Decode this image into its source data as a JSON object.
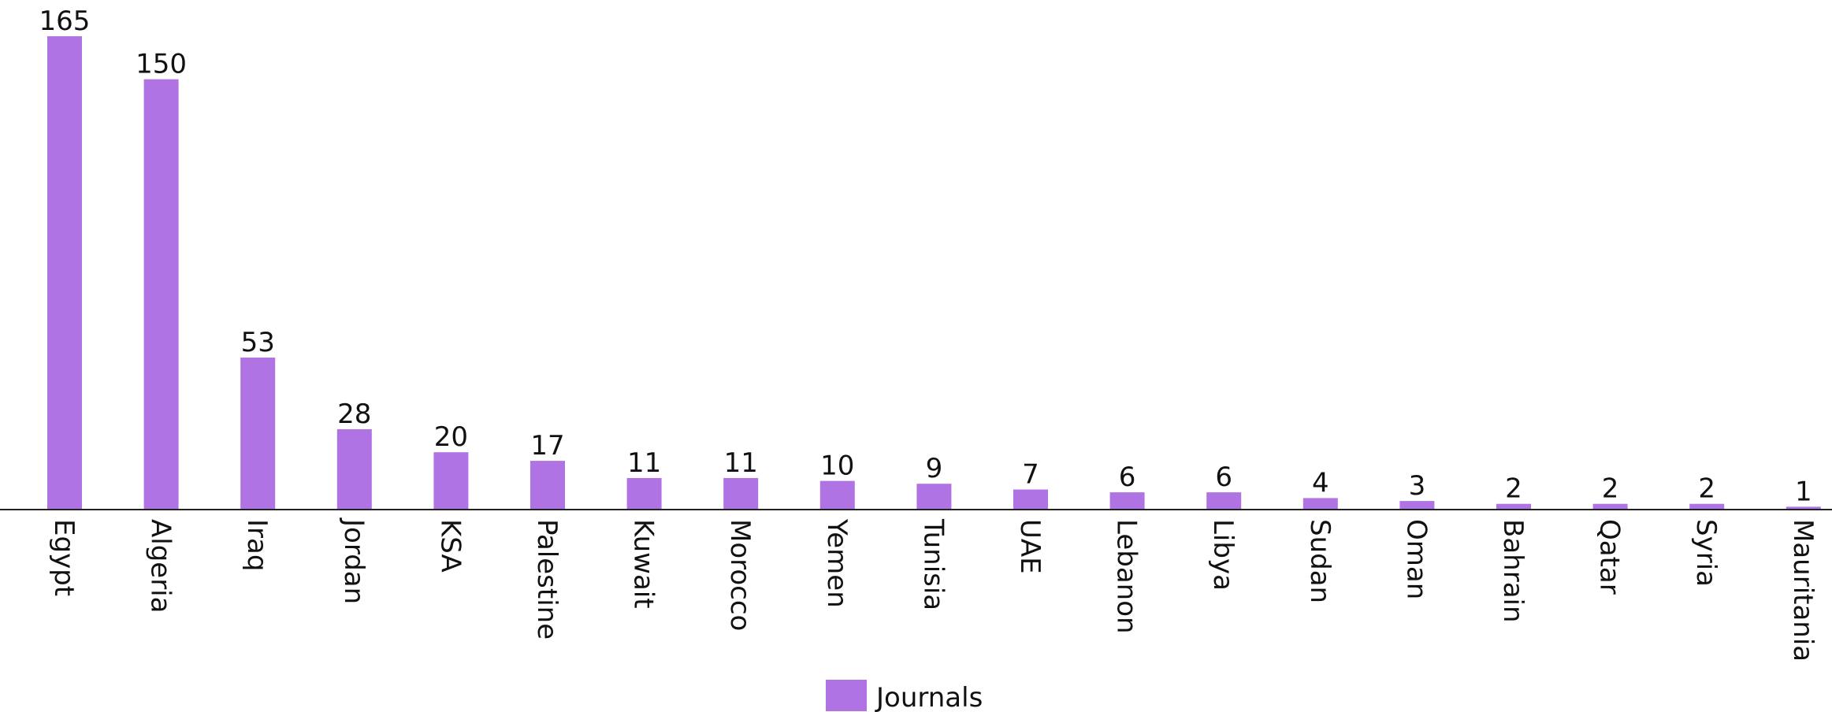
{
  "chart_data": {
    "type": "bar",
    "categories": [
      "Egypt",
      "Algeria",
      "Iraq",
      "Jordan",
      "KSA",
      "Palestine",
      "Kuwait",
      "Morocco",
      "Yemen",
      "Tunisia",
      "UAE",
      "Lebanon",
      "Libya",
      "Sudan",
      "Oman",
      "Bahrain",
      "Qatar",
      "Syria",
      "Mauritania"
    ],
    "series": [
      {
        "name": "Journals",
        "values": [
          165,
          150,
          53,
          28,
          20,
          17,
          11,
          11,
          10,
          9,
          7,
          6,
          6,
          4,
          3,
          2,
          2,
          2,
          1
        ],
        "color": "#b073e3"
      }
    ],
    "title": "",
    "xlabel": "",
    "ylabel": "",
    "ylim": [
      0,
      165
    ],
    "grid": false,
    "legend": "bottom-center",
    "data_labels": true
  }
}
